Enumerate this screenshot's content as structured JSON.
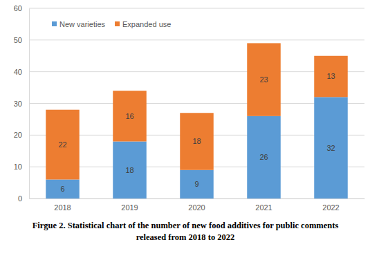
{
  "chart_data": {
    "type": "bar",
    "stacked": true,
    "data_labels": true,
    "grid": true,
    "legend": "top-left",
    "title": "Firgue 2. Statistical chart of the number of new food additives for public comments released from 2018 to 2022",
    "categories": [
      "2018",
      "2019",
      "2020",
      "2021",
      "2022"
    ],
    "series": [
      {
        "name": "New varieties",
        "color": "#5b9bd5",
        "values": [
          6,
          18,
          9,
          26,
          32
        ]
      },
      {
        "name": "Expanded use",
        "color": "#ed7d31",
        "values": [
          22,
          16,
          18,
          23,
          13
        ]
      }
    ],
    "ylim": [
      0,
      60
    ],
    "yticks": [
      0,
      10,
      20,
      30,
      40,
      50,
      60
    ]
  }
}
